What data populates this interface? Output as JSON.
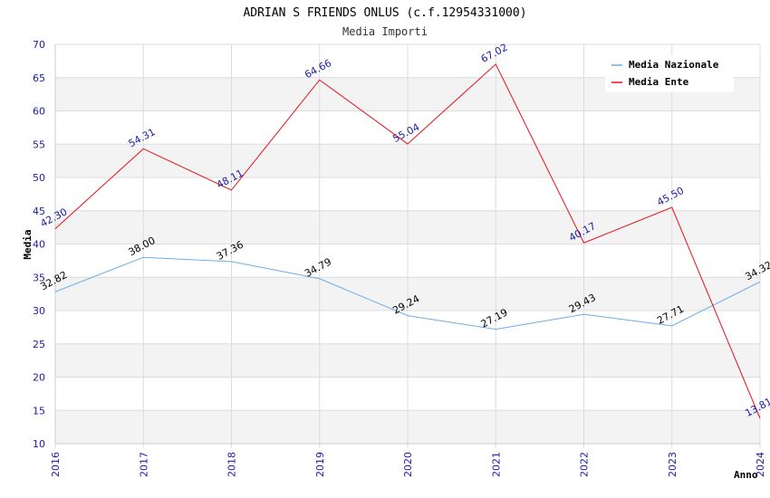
{
  "chart_data": {
    "type": "line",
    "title": "ADRIAN S FRIENDS ONLUS (c.f.12954331000)",
    "subtitle": "Media Importi",
    "xlabel": "Anno",
    "ylabel": "Media",
    "x": [
      "2016",
      "2017",
      "2018",
      "2019",
      "2020",
      "2021",
      "2022",
      "2023",
      "2024"
    ],
    "ylim": [
      10,
      70
    ],
    "yticks": [
      10,
      15,
      20,
      25,
      30,
      35,
      40,
      45,
      50,
      55,
      60,
      65,
      70
    ],
    "grid": true,
    "legend_position": "top-right",
    "series": [
      {
        "name": "Media Nazionale",
        "color": "#6aaee8",
        "values": [
          32.82,
          38.0,
          37.36,
          34.79,
          29.24,
          27.19,
          29.43,
          27.71,
          34.32
        ],
        "labels": [
          "32.82",
          "38.00",
          "37.36",
          "34.79",
          "29.24",
          "27.19",
          "29.43",
          "27.71",
          "34.32"
        ]
      },
      {
        "name": "Media Ente",
        "color": "#e8101a",
        "values": [
          42.3,
          54.31,
          48.11,
          64.66,
          55.04,
          67.02,
          40.17,
          45.5,
          13.81
        ],
        "labels": [
          "42.30",
          "54.31",
          "48.11",
          "64.66",
          "55.04",
          "67.02",
          "40.17",
          "45.50",
          "13.81"
        ]
      }
    ]
  }
}
